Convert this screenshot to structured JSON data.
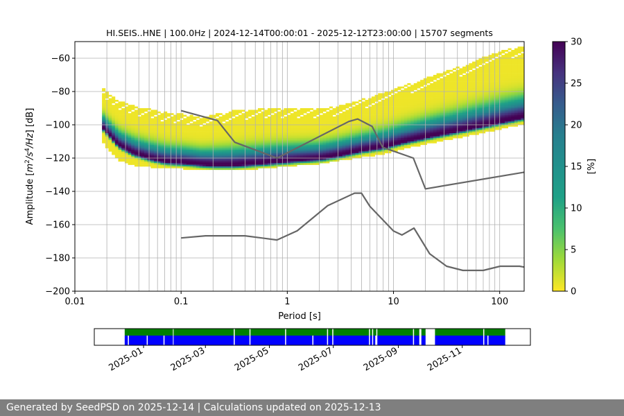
{
  "chart_data": [
    {
      "type": "heatmap",
      "title": "HI.SEIS..HNE | 100.0Hz | 2024-12-14T00:00:01 - 2025-12-12T23:00:00 | 15707 segments",
      "xlabel": "Period [s]",
      "ylabel_prefix": "Amplitude [",
      "ylabel_suffix": "] [dB]",
      "ylabel_units": {
        "m": "m",
        "p1": "2",
        "s": "/s",
        "p2": "4",
        "hz": "/Hz"
      },
      "xscale": "log",
      "xlim": [
        0.01,
        170
      ],
      "ylim": [
        -200,
        -50
      ],
      "grid": true,
      "x_ticks": [
        {
          "value": 0.01,
          "label": "0.01"
        },
        {
          "value": 0.1,
          "label": "0.1"
        },
        {
          "value": 1,
          "label": "1"
        },
        {
          "value": 10,
          "label": "10"
        },
        {
          "value": 100,
          "label": "100"
        }
      ],
      "y_ticks": [
        {
          "value": -60,
          "label": "−60"
        },
        {
          "value": -80,
          "label": "−80"
        },
        {
          "value": -100,
          "label": "−100"
        },
        {
          "value": -120,
          "label": "−120"
        },
        {
          "value": -140,
          "label": "−140"
        },
        {
          "value": -160,
          "label": "−160"
        },
        {
          "value": -180,
          "label": "−180"
        },
        {
          "value": -200,
          "label": "−200"
        }
      ],
      "colorbar": {
        "label": "[%]",
        "range": [
          0,
          30
        ],
        "colormap": "viridis_r",
        "ticks": [
          {
            "value": 0,
            "label": "0"
          },
          {
            "value": 5,
            "label": "5"
          },
          {
            "value": 10,
            "label": "10"
          },
          {
            "value": 15,
            "label": "15"
          },
          {
            "value": 20,
            "label": "20"
          },
          {
            "value": 25,
            "label": "25"
          },
          {
            "value": 30,
            "label": "30"
          }
        ]
      },
      "density": {
        "period": [
          0.018,
          0.025,
          0.035,
          0.05,
          0.07,
          0.1,
          0.15,
          0.2,
          0.3,
          0.5,
          0.8,
          1.2,
          2,
          3,
          5,
          8,
          12,
          20,
          35,
          60,
          100,
          170
        ],
        "upper_db": [
          -78,
          -85,
          -88,
          -90,
          -92,
          -93,
          -95,
          -93,
          -91,
          -90,
          -89,
          -90,
          -90,
          -88,
          -84,
          -80,
          -76,
          -71,
          -66,
          -60,
          -55,
          -52
        ],
        "peak_db": [
          -102,
          -112,
          -117,
          -120,
          -122,
          -122.5,
          -123.5,
          -124,
          -124,
          -123,
          -122,
          -121,
          -120,
          -118,
          -115,
          -113,
          -110,
          -107,
          -104,
          -101,
          -98,
          -95
        ],
        "lower_db": [
          -110,
          -120,
          -123,
          -124,
          -125,
          -125,
          -125.5,
          -125.5,
          -125.5,
          -125,
          -124,
          -123,
          -122,
          -120,
          -118,
          -116,
          -113,
          -110,
          -107,
          -104,
          -101,
          -98
        ]
      },
      "series": [
        {
          "name": "NHNM",
          "color": "#666666",
          "x": [
            0.1,
            0.22,
            0.32,
            0.8,
            3.8,
            4.6,
            6.3,
            7.9,
            15.4,
            20,
            170
          ],
          "y": [
            -91.5,
            -97.4,
            -110.5,
            -120,
            -98,
            -96.5,
            -101,
            -113.5,
            -120,
            -138.5,
            -128.5
          ]
        },
        {
          "name": "NLNM",
          "color": "#666666",
          "x": [
            0.1,
            0.17,
            0.4,
            0.8,
            1.24,
            2.4,
            4.3,
            5,
            6,
            10,
            12,
            15.6,
            21.9,
            31.6,
            45,
            70,
            101,
            154,
            170
          ],
          "y": [
            -168,
            -166.7,
            -166.7,
            -169.2,
            -163.7,
            -148.6,
            -141.1,
            -141.1,
            -149,
            -163.8,
            -166.2,
            -162.1,
            -177.5,
            -185,
            -187.5,
            -187.5,
            -185,
            -185,
            -185.5
          ]
        }
      ]
    },
    {
      "type": "timeline",
      "date_range": [
        "2024-12-14",
        "2025-12-12"
      ],
      "x_ticks": [
        "2025-01",
        "2025-03",
        "2025-05",
        "2025-07",
        "2025-09",
        "2025-11"
      ],
      "x_tick_dates": [
        "2025-01-01",
        "2025-03-01",
        "2025-05-01",
        "2025-07-01",
        "2025-09-01",
        "2025-11-01"
      ],
      "availability_color": "#008000",
      "used_color": "#0000ff",
      "gaps": [
        [
          "2025-01-29",
          "2025-01-29"
        ],
        [
          "2025-03-28",
          "2025-03-29"
        ],
        [
          "2025-04-12",
          "2025-04-13"
        ],
        [
          "2025-05-16",
          "2025-05-17"
        ],
        [
          "2025-06-25",
          "2025-06-26"
        ],
        [
          "2025-06-30",
          "2025-07-01"
        ],
        [
          "2025-08-04",
          "2025-08-05"
        ],
        [
          "2025-08-07",
          "2025-08-08"
        ],
        [
          "2025-08-11",
          "2025-08-12"
        ],
        [
          "2025-09-15",
          "2025-09-16"
        ],
        [
          "2025-09-21",
          "2025-09-23"
        ],
        [
          "2025-09-27",
          "2025-10-06"
        ],
        [
          "2025-11-21",
          "2025-11-22"
        ]
      ],
      "used_only_gaps": [
        [
          "2024-12-17",
          "2024-12-18"
        ],
        [
          "2025-01-04",
          "2025-01-05"
        ],
        [
          "2025-01-20",
          "2025-01-21"
        ],
        [
          "2025-06-11",
          "2025-06-12"
        ],
        [
          "2025-08-10",
          "2025-08-11"
        ],
        [
          "2025-11-25",
          "2025-11-26"
        ]
      ]
    }
  ],
  "footer": {
    "text": "Generated by SeedPSD on 2025-12-14 | Calculations updated on 2025-12-13"
  }
}
